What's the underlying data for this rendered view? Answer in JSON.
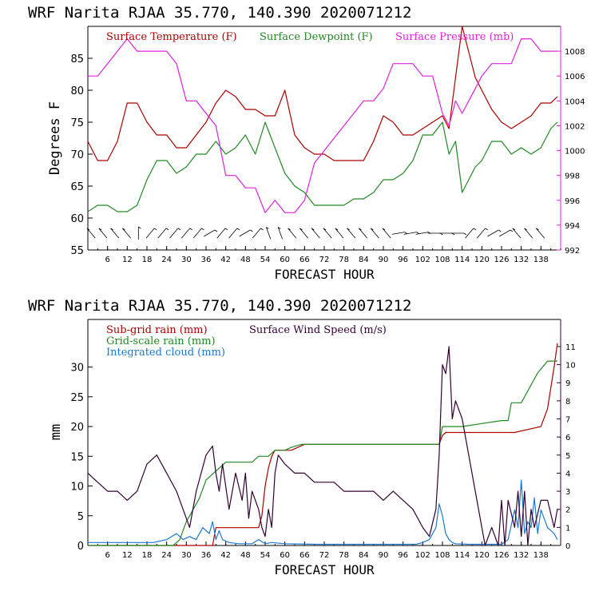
{
  "chart_data": [
    {
      "type": "line",
      "title": "WRF   Narita RJAA    35.770, 140.390  2020071212",
      "xlabel": "FORECAST HOUR",
      "ylabel": "Degrees F",
      "xlim": [
        0,
        144
      ],
      "ylim": [
        55,
        90
      ],
      "y2lim": [
        992,
        1010
      ],
      "xticks": [
        "6",
        "12",
        "18",
        "24",
        "30",
        "36",
        "42",
        "48",
        "54",
        "60",
        "66",
        "72",
        "78",
        "84",
        "90",
        "96",
        "102",
        "108",
        "114",
        "120",
        "126",
        "132",
        "138"
      ],
      "yticks": [
        "55",
        "60",
        "65",
        "70",
        "75",
        "80",
        "85"
      ],
      "y2ticks": [
        "992",
        "994",
        "996",
        "998",
        "1000",
        "1002",
        "1004",
        "1006",
        "1008"
      ],
      "series": [
        {
          "name": "Surface Temperature (F)",
          "color": "#aa0000",
          "axis": "left",
          "x": [
            0,
            3,
            6,
            9,
            12,
            15,
            18,
            21,
            24,
            27,
            30,
            33,
            36,
            39,
            42,
            45,
            48,
            51,
            54,
            57,
            60,
            63,
            66,
            69,
            72,
            75,
            78,
            81,
            84,
            87,
            90,
            93,
            96,
            99,
            102,
            105,
            108,
            110,
            112,
            114,
            116,
            118,
            120,
            123,
            126,
            129,
            132,
            135,
            138,
            141,
            143
          ],
          "y": [
            72,
            69,
            69,
            72,
            78,
            78,
            75,
            73,
            73,
            71,
            71,
            73,
            75,
            78,
            80,
            79,
            77,
            77,
            76,
            76,
            80,
            73,
            71,
            70,
            70,
            69,
            69,
            69,
            69,
            72,
            76,
            75,
            73,
            73,
            74,
            75,
            76,
            74,
            82,
            90,
            86,
            82,
            80,
            77,
            75,
            74,
            75,
            76,
            78,
            78,
            79
          ]
        },
        {
          "name": "Surface Dewpoint (F)",
          "color": "#228822",
          "axis": "left",
          "x": [
            0,
            3,
            6,
            9,
            12,
            15,
            18,
            21,
            24,
            27,
            30,
            33,
            36,
            39,
            42,
            45,
            48,
            51,
            54,
            57,
            60,
            63,
            66,
            69,
            72,
            75,
            78,
            81,
            84,
            87,
            90,
            93,
            96,
            99,
            102,
            105,
            108,
            110,
            112,
            114,
            116,
            118,
            120,
            123,
            126,
            129,
            132,
            135,
            138,
            141,
            143
          ],
          "y": [
            61,
            62,
            62,
            61,
            61,
            62,
            66,
            69,
            69,
            67,
            68,
            70,
            70,
            72,
            70,
            71,
            73,
            70,
            75,
            71,
            67,
            65,
            64,
            62,
            62,
            62,
            62,
            63,
            63,
            64,
            66,
            66,
            67,
            69,
            73,
            73,
            75,
            70,
            72,
            64,
            66,
            68,
            69,
            72,
            72,
            70,
            71,
            70,
            71,
            74,
            75
          ]
        },
        {
          "name": "Surface Pressure (mb)",
          "color": "#dd22dd",
          "axis": "right",
          "x": [
            0,
            3,
            6,
            9,
            12,
            15,
            18,
            21,
            24,
            27,
            30,
            33,
            36,
            39,
            42,
            45,
            48,
            51,
            54,
            57,
            60,
            63,
            66,
            69,
            72,
            75,
            78,
            81,
            84,
            87,
            90,
            93,
            96,
            99,
            102,
            105,
            108,
            110,
            112,
            114,
            116,
            118,
            120,
            123,
            126,
            129,
            132,
            135,
            138,
            141,
            143
          ],
          "y": [
            1006,
            1006,
            1007,
            1008,
            1009,
            1008,
            1008,
            1008,
            1008,
            1007,
            1004,
            1004,
            1003,
            1002,
            998,
            998,
            997,
            997,
            995,
            996,
            995,
            995,
            996,
            999,
            1000,
            1001,
            1002,
            1003,
            1004,
            1004,
            1005,
            1007,
            1007,
            1007,
            1006,
            1006,
            1003,
            1002,
            1004,
            1003,
            1004,
            1005,
            1006,
            1007,
            1007,
            1007,
            1009,
            1009,
            1008,
            1008,
            1008
          ]
        }
      ],
      "legend": [
        "Surface Temperature (F)",
        "Surface Dewpoint (F)",
        "Surface Pressure (mb)"
      ],
      "legend_placement": "top"
    },
    {
      "type": "line",
      "title": "WRF   Narita RJAA    35.770, 140.390  2020071212",
      "xlabel": "FORECAST HOUR",
      "ylabel": "mm",
      "xlim": [
        0,
        144
      ],
      "ylim": [
        0,
        38
      ],
      "y2lim": [
        0,
        12.5
      ],
      "xticks": [
        "6",
        "12",
        "18",
        "24",
        "30",
        "36",
        "42",
        "48",
        "54",
        "60",
        "66",
        "72",
        "78",
        "84",
        "90",
        "96",
        "102",
        "108",
        "114",
        "120",
        "126",
        "132",
        "138"
      ],
      "yticks": [
        "0",
        "5",
        "10",
        "15",
        "20",
        "25",
        "30"
      ],
      "y2ticks": [
        "0",
        "1",
        "2",
        "3",
        "4",
        "5",
        "6",
        "7",
        "8",
        "9",
        "10",
        "11"
      ],
      "series": [
        {
          "name": "Sub-grid rain (mm)",
          "color": "#aa0000",
          "axis": "left",
          "x": [
            0,
            38,
            39,
            52,
            53,
            54,
            55,
            56,
            57,
            58,
            60,
            62,
            64,
            66,
            80,
            100,
            107,
            108,
            109,
            114,
            120,
            126,
            130,
            138,
            140,
            142,
            143
          ],
          "y": [
            0,
            0,
            3,
            3,
            5,
            10,
            13,
            15,
            16,
            16,
            16,
            16,
            16.5,
            17,
            17,
            17,
            17,
            18.5,
            19,
            19,
            19,
            19,
            19,
            20,
            23,
            30,
            34
          ]
        },
        {
          "name": "Grid-scale rain (mm)",
          "color": "#228822",
          "axis": "left",
          "x": [
            0,
            26,
            28,
            30,
            32,
            34,
            36,
            38,
            40,
            42,
            50,
            52,
            55,
            57,
            60,
            62,
            65,
            70,
            80,
            100,
            107,
            108,
            109,
            114,
            120,
            126,
            128,
            129,
            132,
            134,
            136,
            137,
            140,
            143
          ],
          "y": [
            0,
            0,
            1,
            4,
            6,
            8,
            11,
            12,
            13,
            14,
            14,
            15,
            15,
            16,
            16,
            16.5,
            17,
            17,
            17,
            17,
            17,
            20,
            20,
            20,
            20.5,
            21,
            21,
            24,
            24,
            26,
            28,
            29,
            31,
            31
          ]
        },
        {
          "name": "Integrated cloud (mm)",
          "color": "#1e78d0",
          "axis": "left",
          "x": [
            0,
            20,
            24,
            27,
            29,
            31,
            33,
            35,
            37,
            38,
            39,
            40,
            41,
            43,
            46,
            50,
            52,
            54,
            56,
            60,
            70,
            80,
            90,
            100,
            102,
            104,
            106,
            107,
            108,
            109,
            110,
            111,
            112,
            116,
            120,
            126,
            128,
            130,
            131,
            132,
            133,
            134,
            135,
            136,
            137,
            138,
            140,
            142,
            143
          ],
          "y": [
            0.5,
            0.5,
            1,
            2,
            1,
            1.5,
            1,
            3,
            2,
            4,
            1,
            2.5,
            1,
            0.5,
            0.3,
            0.3,
            1,
            0.3,
            0.5,
            0.3,
            0.2,
            0.2,
            0.2,
            0.2,
            0.5,
            1,
            3,
            7,
            5,
            2,
            1,
            0.5,
            0.3,
            0.2,
            0.2,
            0.2,
            1,
            6,
            3,
            11,
            2,
            4,
            3,
            8,
            2,
            6,
            3,
            2,
            1
          ]
        },
        {
          "name": "Surface Wind Speed (m/s)",
          "color": "#330033",
          "axis": "right",
          "x": [
            0,
            3,
            6,
            9,
            12,
            15,
            18,
            21,
            24,
            27,
            29,
            31,
            33,
            36,
            38,
            39,
            40,
            41,
            43,
            45,
            47,
            48,
            49,
            50,
            52,
            53,
            54,
            55,
            56,
            57,
            58,
            60,
            63,
            66,
            69,
            72,
            75,
            78,
            81,
            84,
            87,
            90,
            93,
            96,
            99,
            102,
            104,
            106,
            107,
            108,
            109,
            110,
            111,
            112,
            114,
            116,
            118,
            120,
            121,
            123,
            125,
            126,
            127,
            128,
            130,
            131,
            132,
            133,
            134,
            135,
            136,
            138,
            140,
            142,
            143
          ],
          "y": [
            4,
            3.5,
            3,
            3,
            2.5,
            3,
            4.5,
            5,
            4,
            3,
            2,
            1,
            3,
            5,
            5.5,
            4,
            3,
            4.5,
            2,
            4,
            2.5,
            4,
            1.5,
            3,
            2,
            1,
            0.5,
            2,
            1,
            4,
            5,
            4.5,
            4,
            4,
            3.5,
            3.5,
            3.5,
            3,
            3,
            3,
            3,
            2.5,
            3,
            2.5,
            2,
            1,
            0.5,
            2,
            5,
            10,
            9.5,
            11,
            7,
            8,
            7,
            5,
            3,
            1,
            0,
            1,
            0,
            2.5,
            0,
            2.5,
            1,
            3,
            0.5,
            3,
            0,
            2,
            1,
            2.5,
            2.5,
            1,
            2
          ]
        }
      ],
      "legend": [
        "Sub-grid rain (mm)",
        "Grid-scale rain (mm)",
        "Integrated cloud (mm)",
        "Surface Wind Speed (m/s)"
      ],
      "legend_placement": "top-left"
    }
  ]
}
